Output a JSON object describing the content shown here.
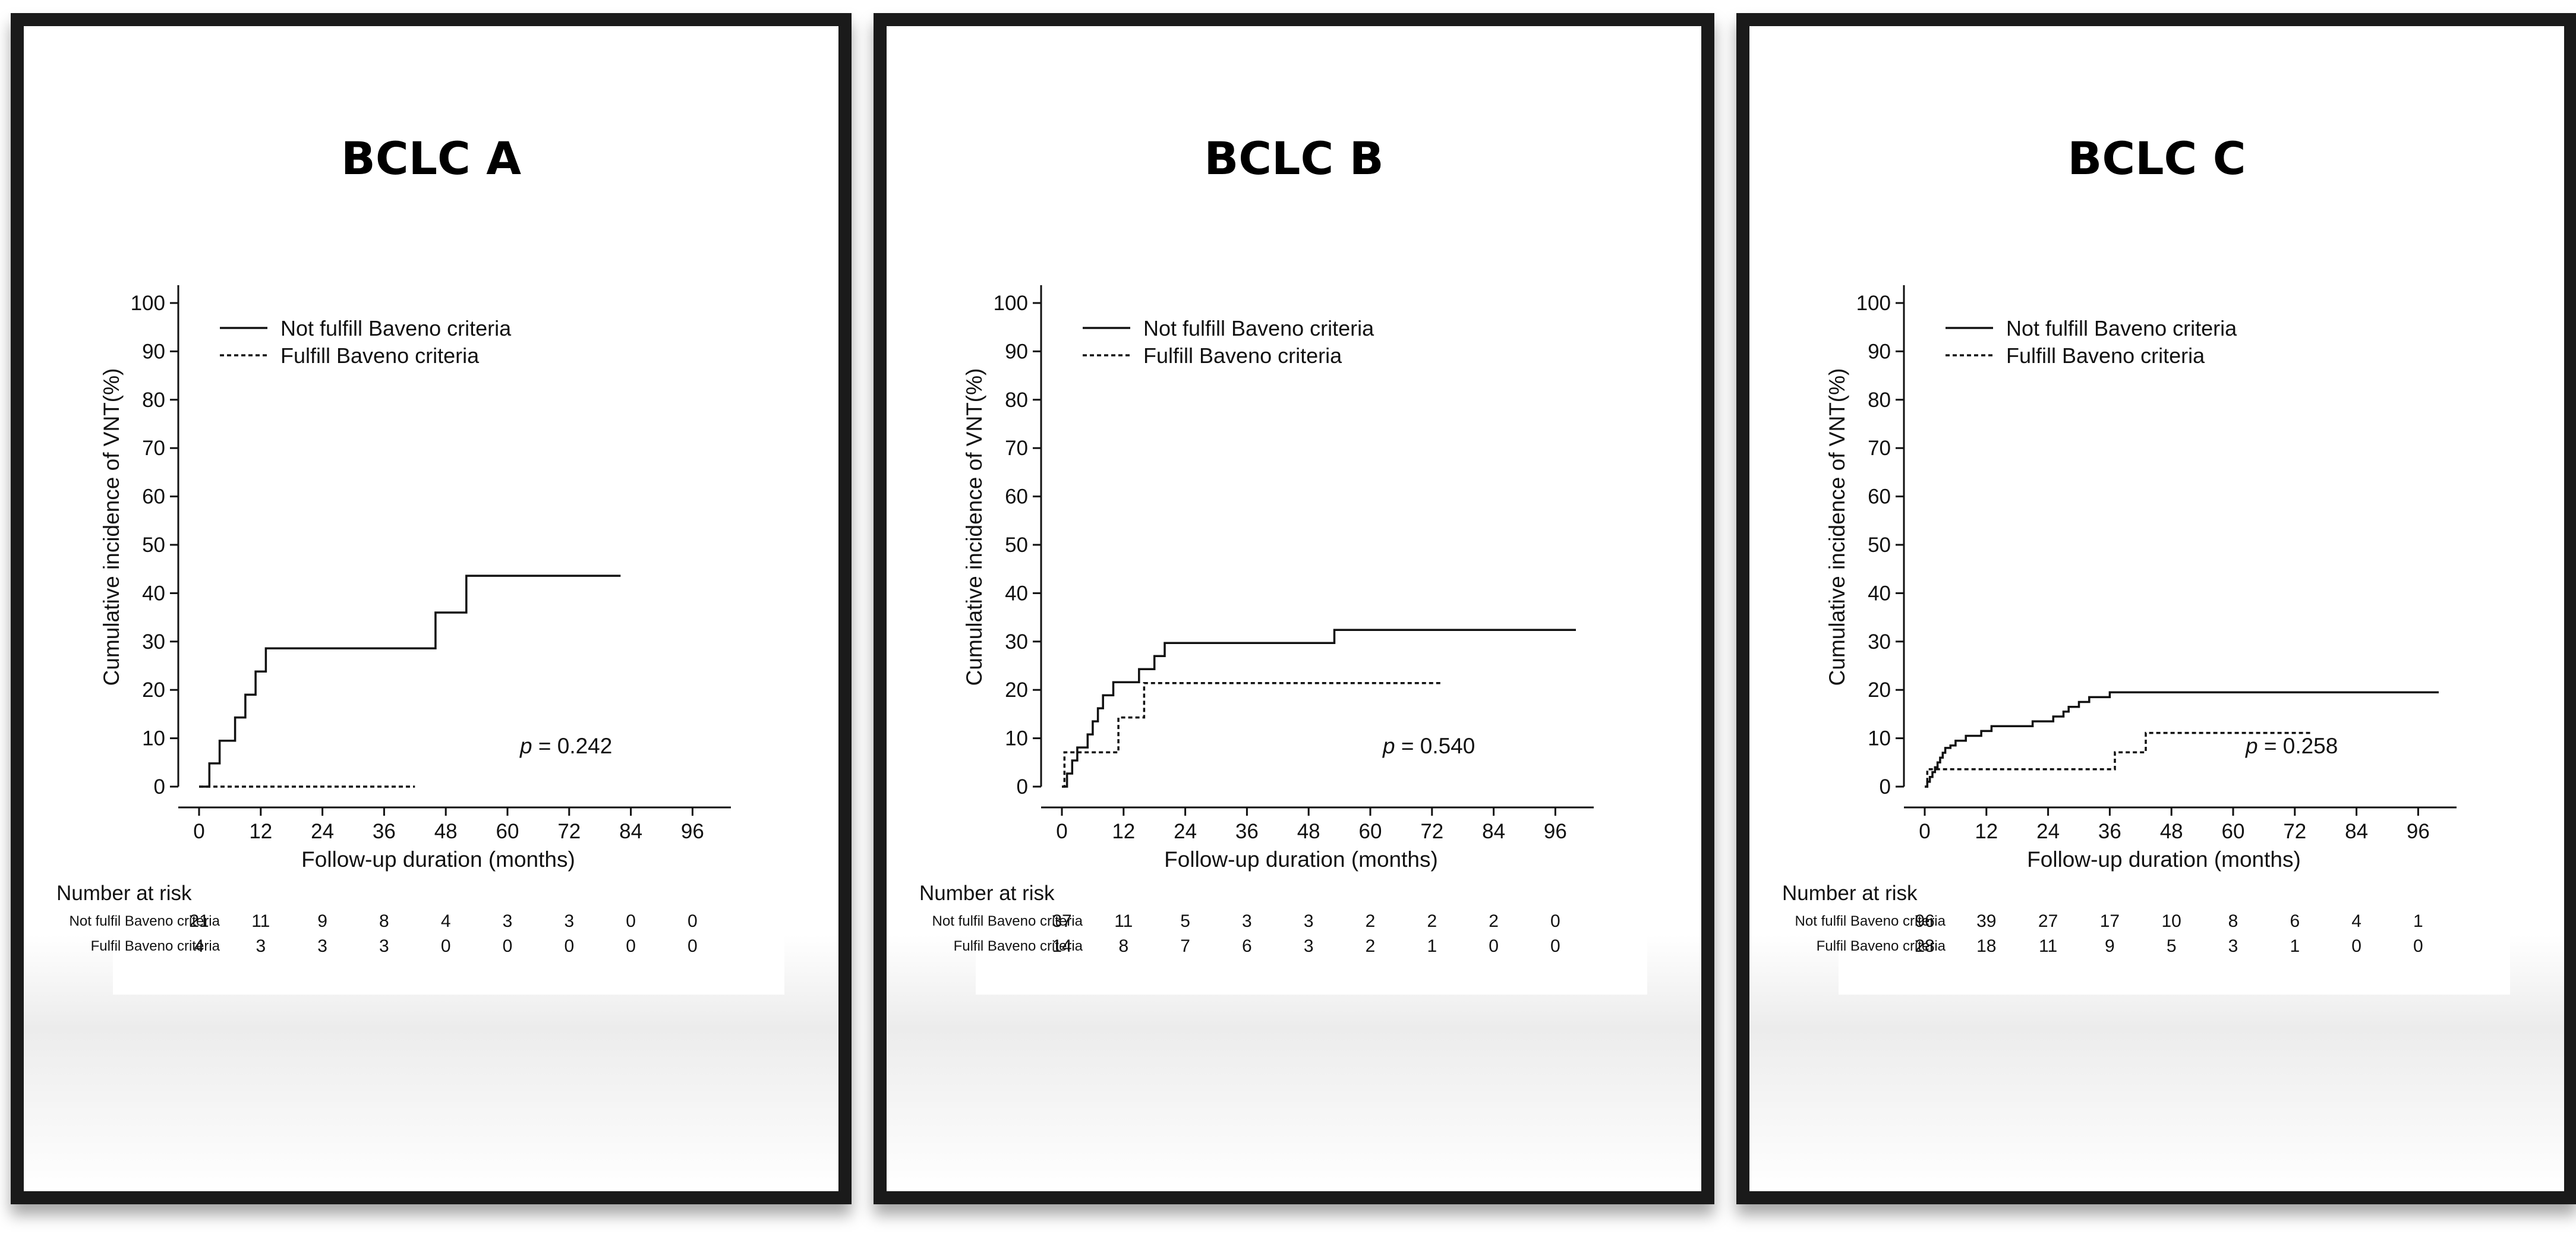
{
  "chart_data": [
    {
      "type": "line",
      "title": "BCLC A",
      "xlabel": "Follow-up duration (months)",
      "ylabel": "Cumulative incidence of VNT(%)",
      "xlim": [
        0,
        100
      ],
      "ylim": [
        0,
        100
      ],
      "xticks": [
        0,
        12,
        24,
        36,
        48,
        60,
        72,
        84,
        96
      ],
      "yticks": [
        0,
        10,
        20,
        30,
        40,
        50,
        60,
        70,
        80,
        90,
        100
      ],
      "legend_position": "top-left",
      "p_label": "p",
      "p_value": "= 0.242",
      "series": [
        {
          "name": "Not fulfill Baveno criteria",
          "style": "solid",
          "x": [
            0,
            2,
            2,
            4,
            4,
            7,
            7,
            9,
            9,
            11,
            11,
            13,
            13,
            46,
            46,
            52,
            52,
            82
          ],
          "y": [
            0,
            0,
            4.8,
            4.8,
            9.5,
            9.5,
            14.3,
            14.3,
            19,
            19,
            23.8,
            23.8,
            28.6,
            28.6,
            36,
            36,
            43.6,
            43.6
          ]
        },
        {
          "name": "Fulfill Baveno criteria",
          "style": "dotted",
          "x": [
            0,
            42
          ],
          "y": [
            0,
            0
          ]
        }
      ],
      "risk_table": {
        "title": "Number at risk",
        "rows": [
          {
            "label": "Not fulfil Baveno criteria",
            "values": [
              "21",
              "11",
              "9",
              "8",
              "4",
              "3",
              "3",
              "0",
              "0"
            ]
          },
          {
            "label": "Fulfil Baveno criteria",
            "values": [
              "4",
              "3",
              "3",
              "3",
              "0",
              "0",
              "0",
              "0",
              "0"
            ]
          }
        ]
      }
    },
    {
      "type": "line",
      "title": "BCLC B",
      "xlabel": "Follow-up duration (months)",
      "ylabel": "Cumulative incidence of VNT(%)",
      "xlim": [
        0,
        100
      ],
      "ylim": [
        0,
        100
      ],
      "xticks": [
        0,
        12,
        24,
        36,
        48,
        60,
        72,
        84,
        96
      ],
      "yticks": [
        0,
        10,
        20,
        30,
        40,
        50,
        60,
        70,
        80,
        90,
        100
      ],
      "legend_position": "top-left",
      "p_label": "p",
      "p_value": "= 0.540",
      "series": [
        {
          "name": "Not fulfill Baveno criteria",
          "style": "solid",
          "x": [
            0,
            1,
            1,
            2,
            2,
            3,
            3,
            5,
            5,
            6,
            6,
            7,
            7,
            8,
            8,
            10,
            10,
            15,
            15,
            18,
            18,
            20,
            20,
            22,
            22,
            23,
            23,
            24,
            24,
            53,
            53,
            100
          ],
          "y": [
            0,
            0,
            2.7,
            2.7,
            5.4,
            5.4,
            8.1,
            8.1,
            10.8,
            10.8,
            13.5,
            13.5,
            16.2,
            16.2,
            18.9,
            18.9,
            21.6,
            21.6,
            24.3,
            24.3,
            27,
            27,
            29.7,
            29.7,
            29.7,
            29.7,
            29.7,
            29.7,
            29.7,
            29.7,
            32.4,
            32.4
          ]
        },
        {
          "name": "Fulfill Baveno criteria",
          "style": "dotted",
          "x": [
            0,
            0.5,
            0.5,
            11,
            11,
            16,
            16,
            74
          ],
          "y": [
            0,
            0,
            7.1,
            7.1,
            14.3,
            14.3,
            21.4,
            21.4
          ]
        }
      ],
      "risk_table": {
        "title": "Number at risk",
        "rows": [
          {
            "label": "Not fulfil Baveno criteria",
            "values": [
              "37",
              "11",
              "5",
              "3",
              "3",
              "2",
              "2",
              "2",
              "0"
            ]
          },
          {
            "label": "Fulfil Baveno criteria",
            "values": [
              "14",
              "8",
              "7",
              "6",
              "3",
              "2",
              "1",
              "0",
              "0"
            ]
          }
        ]
      }
    },
    {
      "type": "line",
      "title": "BCLC C",
      "xlabel": "Follow-up duration (months)",
      "ylabel": "Cumulative incidence of VNT(%)",
      "xlim": [
        0,
        100
      ],
      "ylim": [
        0,
        100
      ],
      "xticks": [
        0,
        12,
        24,
        36,
        48,
        60,
        72,
        84,
        96
      ],
      "yticks": [
        0,
        10,
        20,
        30,
        40,
        50,
        60,
        70,
        80,
        90,
        100
      ],
      "legend_position": "top-left",
      "p_label": "p",
      "p_value": "= 0.258",
      "series": [
        {
          "name": "Not fulfill Baveno criteria",
          "style": "solid",
          "x": [
            0,
            0.5,
            0.5,
            1,
            1,
            1.5,
            1.5,
            2,
            2,
            2.5,
            2.5,
            3,
            3,
            3.5,
            3.5,
            4,
            4,
            5,
            5,
            6,
            6,
            8,
            8,
            11,
            11,
            13,
            13,
            15,
            15,
            21,
            21,
            25,
            25,
            27,
            27,
            28,
            28,
            30,
            30,
            32,
            32,
            36,
            36,
            38,
            38,
            100
          ],
          "y": [
            0,
            0,
            1,
            1,
            2,
            2,
            3,
            3,
            4,
            4,
            5,
            5,
            6,
            6,
            7,
            7,
            8,
            8,
            8.5,
            8.5,
            9.5,
            9.5,
            10.5,
            10.5,
            11.5,
            11.5,
            12.5,
            12.5,
            12.5,
            12.5,
            13.5,
            13.5,
            14.5,
            14.5,
            15.5,
            15.5,
            16.5,
            16.5,
            17.5,
            17.5,
            18.5,
            18.5,
            19.5,
            19.5,
            19.5,
            19.5
          ]
        },
        {
          "name": "Fulfill Baveno criteria",
          "style": "dotted",
          "x": [
            0,
            0.5,
            0.5,
            37,
            37,
            43,
            43,
            75
          ],
          "y": [
            0,
            0,
            3.6,
            3.6,
            7.1,
            7.1,
            11.1,
            11.1
          ]
        }
      ],
      "risk_table": {
        "title": "Number at risk",
        "rows": [
          {
            "label": "Not fulfil Baveno criteria",
            "values": [
              "96",
              "39",
              "27",
              "17",
              "10",
              "8",
              "6",
              "4",
              "1"
            ]
          },
          {
            "label": "Fulfil Baveno criteria",
            "values": [
              "28",
              "18",
              "11",
              "9",
              "5",
              "3",
              "1",
              "0",
              "0"
            ]
          }
        ]
      }
    }
  ]
}
